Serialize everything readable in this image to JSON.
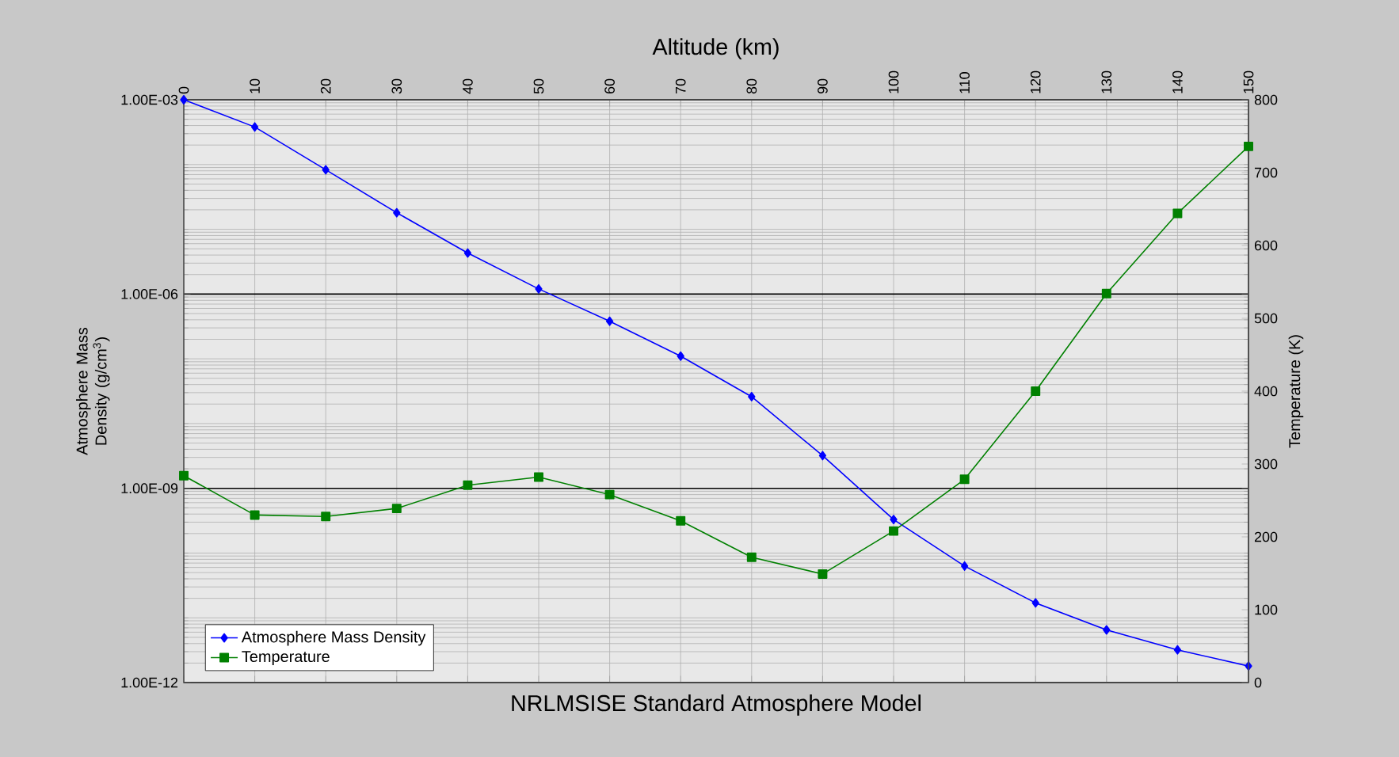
{
  "chart_data": {
    "type": "line",
    "title": "NRLMSISE Standard Atmosphere Model",
    "xlabel": "Altitude (km)",
    "ylabel": "Atmosphere Mass Density (g/cm$^{3}$)",
    "y2label": "Temperature (K)",
    "x": [
      0,
      10,
      20,
      30,
      40,
      50,
      60,
      70,
      80,
      90,
      100,
      110,
      120,
      130,
      140,
      150
    ],
    "xlim": [
      0,
      150
    ],
    "xticks": [
      0,
      10,
      20,
      30,
      40,
      50,
      60,
      70,
      80,
      90,
      100,
      110,
      120,
      130,
      140,
      150
    ],
    "log": "y",
    "ylim": [
      1e-12,
      0.001
    ],
    "yticks": [
      {
        "value": 1e-12,
        "label": "1.00E-12"
      },
      {
        "value": 1e-09,
        "label": "1.00E-09"
      },
      {
        "value": 1e-06,
        "label": "1.00E-06"
      },
      {
        "value": 0.001,
        "label": "1.00E-03"
      }
    ],
    "y2lim": [
      0,
      800
    ],
    "y2ticks": [
      0,
      100,
      200,
      300,
      400,
      500,
      600,
      700,
      800
    ],
    "grid": true,
    "legend": "bottom left",
    "series": [
      {
        "name": "Atmosphere Mass Density",
        "color": "#0000ff",
        "marker": "diamond",
        "values": [
          0.001,
          0.00038,
          8.3e-05,
          1.8e-05,
          4.3e-06,
          1.2e-06,
          3.8e-07,
          1.1e-07,
          2.6e-08,
          3.2e-09,
          3.3e-10,
          6.3e-11,
          1.7e-11,
          6.5e-12,
          3.2e-12,
          1.8e-12
        ]
      },
      {
        "name": "Temperature",
        "color": "#008000",
        "marker": "square",
        "axis": "y2",
        "values": [
          284,
          230,
          228,
          239,
          271,
          282,
          258,
          222,
          172,
          149,
          208,
          279,
          400,
          534,
          644,
          736
        ]
      }
    ]
  }
}
